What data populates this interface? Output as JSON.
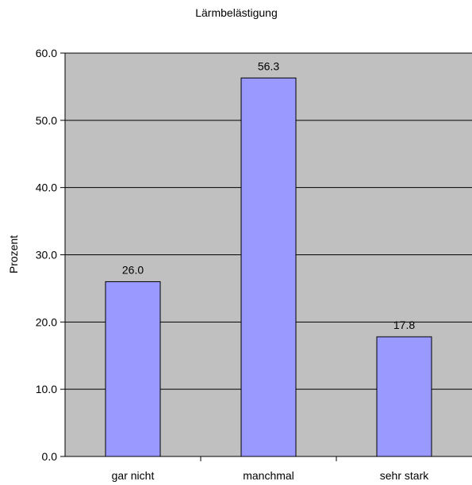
{
  "chart_data": {
    "type": "bar",
    "title": "Lärmbelästigung",
    "xlabel": "",
    "ylabel": "Prozent",
    "categories": [
      "gar nicht",
      "manchmal",
      "sehr stark"
    ],
    "values": [
      26.0,
      56.3,
      17.8
    ],
    "value_labels": [
      "26.0",
      "56.3",
      "17.8"
    ],
    "ylim": [
      0,
      60
    ],
    "yticks": [
      0,
      10,
      20,
      30,
      40,
      50,
      60
    ],
    "ytick_labels": [
      "0.0",
      "10.0",
      "20.0",
      "30.0",
      "40.0",
      "50.0",
      "60.0"
    ],
    "grid": true,
    "legend": "none",
    "colors": {
      "plot_background": "#c0c0c0",
      "bar_fill": "#9999ff",
      "bar_stroke": "#000000",
      "gridline": "#000000"
    }
  }
}
